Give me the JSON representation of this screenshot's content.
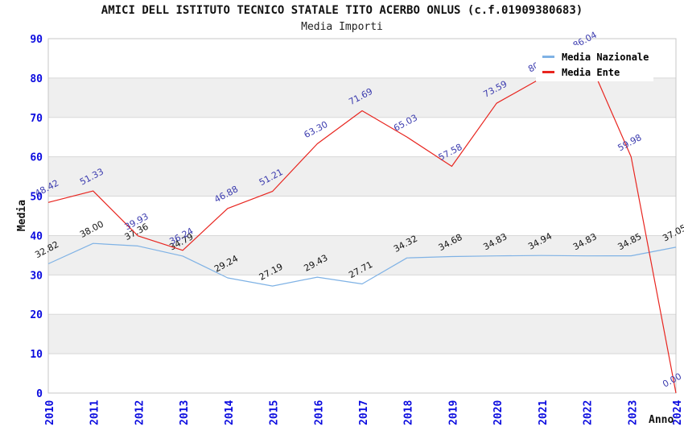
{
  "page": {
    "background": "#ffffff"
  },
  "chart_data": {
    "type": "line",
    "title": "AMICI DELL ISTITUTO TECNICO STATALE TITO ACERBO ONLUS (c.f.01909380683)",
    "subtitle": "Media Importi",
    "xlabel": "Anno",
    "ylabel": "Media",
    "ylim": [
      0,
      90
    ],
    "yticks": [
      0,
      10,
      20,
      30,
      40,
      50,
      60,
      70,
      80,
      90
    ],
    "grid": "horizontal-only",
    "band_fill": "alternating-gray-on-odd-decades",
    "legend_position": "top-right-inside-plot",
    "categories": [
      "2010",
      "2011",
      "2012",
      "2013",
      "2014",
      "2015",
      "2016",
      "2017",
      "2018",
      "2019",
      "2020",
      "2021",
      "2022",
      "2023",
      "2024"
    ],
    "series": [
      {
        "name": "Media Nazionale",
        "color": "#7fb2e5",
        "label_color": "#111111",
        "values": [
          32.82,
          38.0,
          37.36,
          34.79,
          29.24,
          27.19,
          29.43,
          27.71,
          34.32,
          34.68,
          34.83,
          34.94,
          34.83,
          34.85,
          37.05
        ],
        "labels": [
          "32.82",
          "38.00",
          "37.36",
          "34.79",
          "29.24",
          "27.19",
          "29.43",
          "27.71",
          "34.32",
          "34.68",
          "34.83",
          "34.94",
          "34.83",
          "34.85",
          "37.05"
        ]
      },
      {
        "name": "Media Ente",
        "color": "#e8251f",
        "label_color": "#3a3aae",
        "values": [
          48.42,
          51.33,
          39.93,
          36.24,
          46.88,
          51.21,
          63.3,
          71.69,
          65.03,
          57.58,
          73.59,
          80.0,
          86.04,
          59.98,
          0.0
        ],
        "labels": [
          "48.42",
          "51.33",
          "39.93",
          "36.24",
          "46.88",
          "51.21",
          "63.30",
          "71.69",
          "65.03",
          "57.58",
          "73.59",
          "80",
          "86.04",
          "59.98",
          "0.00"
        ]
      }
    ],
    "colors": {
      "tick_label": "#0b0bdf",
      "axis_title": "#111111",
      "grid_line": "#d8d8d8",
      "band": "#efefef",
      "plot_border": "#c7c7c7",
      "legend_background": "#ffffff"
    }
  }
}
